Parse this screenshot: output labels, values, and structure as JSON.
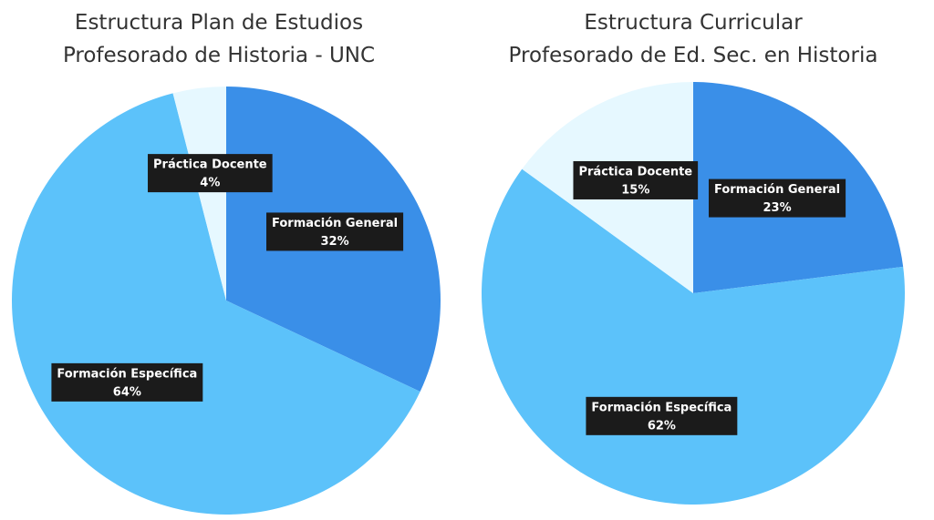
{
  "chart_data": [
    {
      "type": "pie",
      "title": "Estructura Plan de Estudios",
      "subtitle": "Profesorado de Historia - UNC",
      "categories": [
        "Formación General",
        "Formación Específica",
        "Práctica Docente"
      ],
      "values": [
        32,
        64,
        4
      ],
      "value_labels": [
        "32%",
        "64%",
        "4%"
      ],
      "colors": [
        "#3a8fe8",
        "#5cc2fa",
        "#e6f8ff"
      ]
    },
    {
      "type": "pie",
      "title": "Estructura Curricular",
      "subtitle": "Profesorado de Ed. Sec. en Historia",
      "categories": [
        "Formación General",
        "Formación Específica",
        "Práctica Docente"
      ],
      "values": [
        23,
        62,
        15
      ],
      "value_labels": [
        "23%",
        "62%",
        "15%"
      ],
      "colors": [
        "#3a8fe8",
        "#5cc2fa",
        "#e6f8ff"
      ]
    }
  ]
}
